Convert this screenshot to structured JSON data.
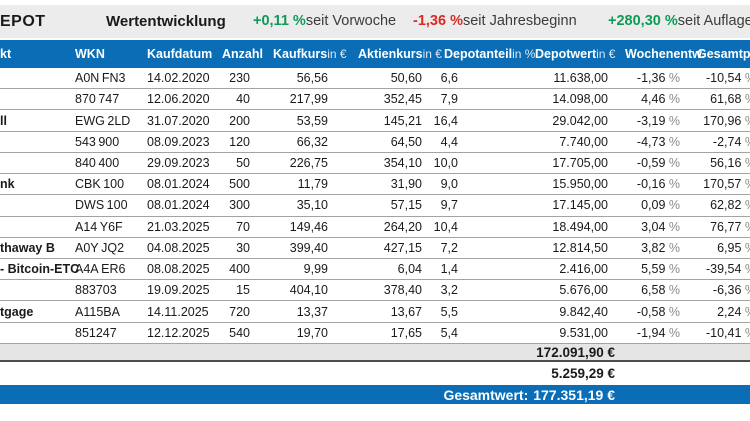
{
  "colors": {
    "blue": "#0a6db6",
    "topbar_gray": "#ececec",
    "positive_green": "#0d9b57",
    "negative_red": "#d92a26",
    "percent_gray": "#8a8a8a"
  },
  "topbar": {
    "title_fragment": "EPOT",
    "section_title": "Wertentwicklung",
    "metrics": [
      {
        "value": "+0,11 %",
        "label": "seit Vorwoche",
        "trend": "pos"
      },
      {
        "value": "-1,36 %",
        "label": "seit Jahresbeginn",
        "trend": "neg"
      },
      {
        "value": "+280,30 %",
        "label": "seit Auflage",
        "trend": "pos"
      }
    ]
  },
  "table": {
    "headers": [
      {
        "text": "kt",
        "unit": ""
      },
      {
        "text": "WKN",
        "unit": ""
      },
      {
        "text": "Kaufdatum",
        "unit": ""
      },
      {
        "text": "Anzahl",
        "unit": ""
      },
      {
        "text": "Kaufkurs",
        "unit": "in €"
      },
      {
        "text": "Aktienkurs",
        "unit": "in €"
      },
      {
        "text": "Depotanteil",
        "unit": "in %"
      },
      {
        "text": "Depotwert",
        "unit": "in €"
      },
      {
        "text": "Wochenentw.",
        "unit": ""
      },
      {
        "text": "Gesamtp",
        "unit": ""
      }
    ],
    "rows": [
      {
        "name": "",
        "wkn": "A0N FN3",
        "date": "14.02.2020",
        "qty": "230",
        "buy": "56,56",
        "price": "50,60",
        "share": "6,6",
        "value": "11.638,00",
        "week": "-1,36 %",
        "total": "-10,54 %"
      },
      {
        "name": "",
        "wkn": "870 747",
        "date": "12.06.2020",
        "qty": "40",
        "buy": "217,99",
        "price": "352,45",
        "share": "7,9",
        "value": "14.098,00",
        "week": "4,46 %",
        "total": "61,68 %"
      },
      {
        "name": "ll",
        "wkn": "EWG 2LD",
        "date": "31.07.2020",
        "qty": "200",
        "buy": "53,59",
        "price": "145,21",
        "share": "16,4",
        "value": "29.042,00",
        "week": "-3,19 %",
        "total": "170,96 %"
      },
      {
        "name": "",
        "wkn": "543 900",
        "date": "08.09.2023",
        "qty": "120",
        "buy": "66,32",
        "price": "64,50",
        "share": "4,4",
        "value": "7.740,00",
        "week": "-4,73 %",
        "total": "-2,74 %"
      },
      {
        "name": "",
        "wkn": "840 400",
        "date": "29.09.2023",
        "qty": "50",
        "buy": "226,75",
        "price": "354,10",
        "share": "10,0",
        "value": "17.705,00",
        "week": "-0,59 %",
        "total": "56,16 %"
      },
      {
        "name": "nk",
        "wkn": "CBK 100",
        "date": "08.01.2024",
        "qty": "500",
        "buy": "11,79",
        "price": "31,90",
        "share": "9,0",
        "value": "15.950,00",
        "week": "-0,16 %",
        "total": "170,57 %"
      },
      {
        "name": "",
        "wkn": "DWS 100",
        "date": "08.01.2024",
        "qty": "300",
        "buy": "35,10",
        "price": "57,15",
        "share": "9,7",
        "value": "17.145,00",
        "week": "0,09 %",
        "total": "62,82 %"
      },
      {
        "name": "",
        "wkn": "A14 Y6F",
        "date": "21.03.2025",
        "qty": "70",
        "buy": "149,46",
        "price": "264,20",
        "share": "10,4",
        "value": "18.494,00",
        "week": "3,04 %",
        "total": "76,77 %"
      },
      {
        "name": "thaway B",
        "wkn": "A0Y JQ2",
        "date": "04.08.2025",
        "qty": "30",
        "buy": "399,40",
        "price": "427,15",
        "share": "7,2",
        "value": "12.814,50",
        "week": "3,82 %",
        "total": "6,95 %"
      },
      {
        "name": "- Bitcoin-ETC",
        "wkn": "A4A ER6",
        "date": "08.08.2025",
        "qty": "400",
        "buy": "9,99",
        "price": "6,04",
        "share": "1,4",
        "value": "2.416,00",
        "week": "5,59 %",
        "total": "-39,54 %"
      },
      {
        "name": "",
        "wkn": "883703",
        "date": "19.09.2025",
        "qty": "15",
        "buy": "404,10",
        "price": "378,40",
        "share": "3,2",
        "value": "5.676,00",
        "week": "6,58 %",
        "total": "-6,36 %"
      },
      {
        "name": "tgage",
        "wkn": "A115BA",
        "date": "14.11.2025",
        "qty": "720",
        "buy": "13,37",
        "price": "13,67",
        "share": "5,5",
        "value": "9.842,40",
        "week": "-0,58 %",
        "total": "2,24 %"
      },
      {
        "name": "",
        "wkn": "851247",
        "date": "12.12.2025",
        "qty": "540",
        "buy": "19,70",
        "price": "17,65",
        "share": "5,4",
        "value": "9.531,00",
        "week": "-1,94 %",
        "total": "-10,41 %"
      }
    ]
  },
  "totals": {
    "positions_value": "172.091,90 €",
    "cash_value": "5.259,29 €",
    "grand_label": "Gesamtwert:",
    "grand_value": "177.351,19 €"
  }
}
